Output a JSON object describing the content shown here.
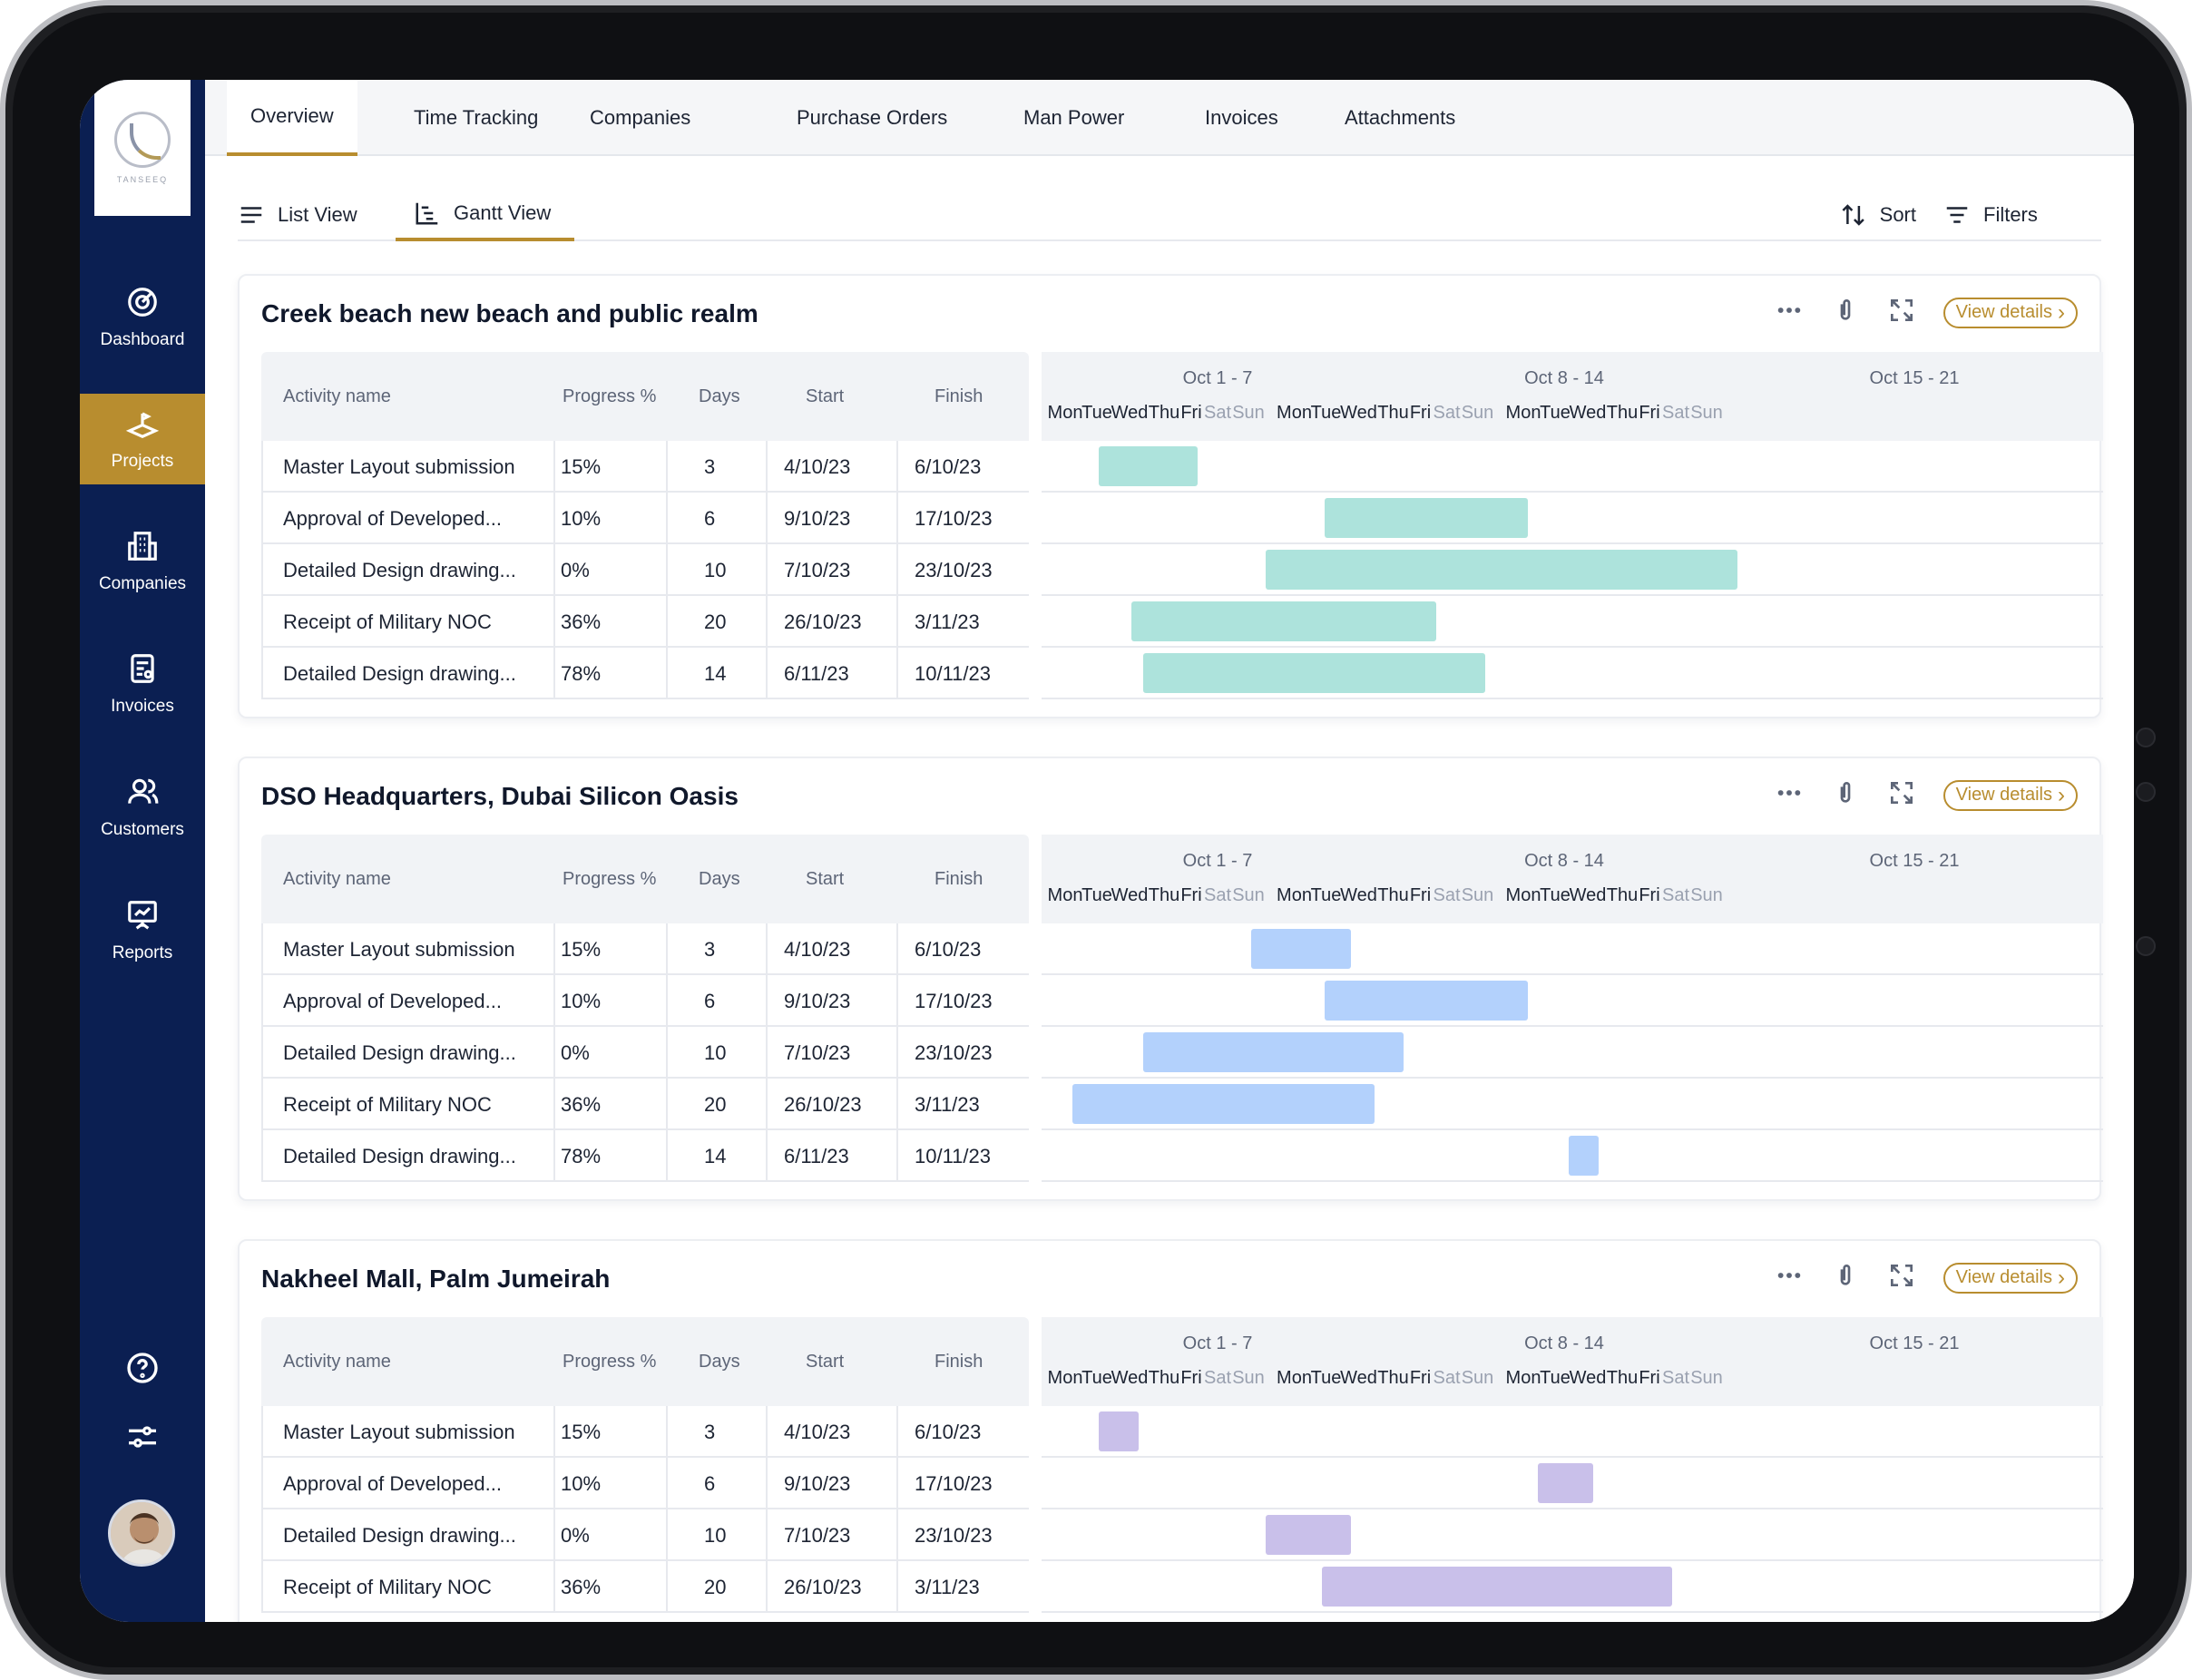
{
  "app": {
    "logo_text": "TANSEEQ",
    "nav": [
      {
        "label": "Dashboard",
        "icon": "dashboard-icon",
        "active": false
      },
      {
        "label": "Projects",
        "icon": "projects-icon",
        "active": true
      },
      {
        "label": "Companies",
        "icon": "companies-icon",
        "active": false
      },
      {
        "label": "Invoices",
        "icon": "invoices-icon",
        "active": false
      },
      {
        "label": "Customers",
        "icon": "customers-icon",
        "active": false
      },
      {
        "label": "Reports",
        "icon": "reports-icon",
        "active": false
      }
    ],
    "bottom_icons": [
      "help-icon",
      "settings-sliders-icon"
    ],
    "accent_color": "#b88d2f",
    "sidebar_color": "#0b1f52"
  },
  "tabs": [
    {
      "label": "Overview",
      "active": true
    },
    {
      "label": "Time Tracking",
      "active": false
    },
    {
      "label": "Companies",
      "active": false
    },
    {
      "label": "Purchase Orders",
      "active": false
    },
    {
      "label": "Man Power",
      "active": false
    },
    {
      "label": "Invoices",
      "active": false
    },
    {
      "label": "Attachments",
      "active": false
    }
  ],
  "toolbar": {
    "list_view": "List View",
    "gantt_view": "Gantt View",
    "sort": "Sort",
    "filters": "Filters"
  },
  "table_headers": [
    "Activity name",
    "Progress %",
    "Days",
    "Start",
    "Finish"
  ],
  "weeks": [
    "Oct 1 - 7",
    "Oct 8 - 14",
    "Oct 15 - 21"
  ],
  "days": [
    "Mon",
    "Tue",
    "Wed",
    "Thu",
    "Fri",
    "Sat",
    "Sun"
  ],
  "view_details": "View details",
  "projects": [
    {
      "title": "Creek beach new beach and public realm",
      "bar_color": "#ade3dc",
      "rows": [
        {
          "name": "Master Layout submission",
          "progress": "15%",
          "days": "3",
          "start": "4/10/23",
          "finish": "6/10/23",
          "bar": [
            1.2,
            4.2
          ]
        },
        {
          "name": "Approval of Developed...",
          "progress": "10%",
          "days": "6",
          "start": "9/10/23",
          "finish": "17/10/23",
          "bar": [
            8.1,
            14.3
          ]
        },
        {
          "name": "Detailed Design drawing...",
          "progress": "0%",
          "days": "10",
          "start": "7/10/23",
          "finish": "23/10/23",
          "bar": [
            6.3,
            20.7
          ]
        },
        {
          "name": "Receipt of Military NOC",
          "progress": "36%",
          "days": "20",
          "start": "26/10/23",
          "finish": "3/11/23",
          "bar": [
            2.2,
            11.5
          ]
        },
        {
          "name": "Detailed Design drawing...",
          "progress": "78%",
          "days": "14",
          "start": "6/11/23",
          "finish": "10/11/23",
          "bar": [
            2.55,
            13.0
          ]
        }
      ]
    },
    {
      "title": "DSO Headquarters, Dubai Silicon Oasis",
      "bar_color": "#b3d1fc",
      "rows": [
        {
          "name": "Master Layout submission",
          "progress": "15%",
          "days": "3",
          "start": "4/10/23",
          "finish": "6/10/23",
          "bar": [
            5.85,
            8.9
          ]
        },
        {
          "name": "Approval of Developed...",
          "progress": "10%",
          "days": "6",
          "start": "9/10/23",
          "finish": "17/10/23",
          "bar": [
            8.1,
            14.3
          ]
        },
        {
          "name": "Detailed Design drawing...",
          "progress": "0%",
          "days": "10",
          "start": "7/10/23",
          "finish": "23/10/23",
          "bar": [
            2.55,
            10.5
          ]
        },
        {
          "name": "Receipt of Military NOC",
          "progress": "36%",
          "days": "20",
          "start": "26/10/23",
          "finish": "3/11/23",
          "bar": [
            0.4,
            9.6
          ]
        },
        {
          "name": "Detailed Design drawing...",
          "progress": "78%",
          "days": "14",
          "start": "6/11/23",
          "finish": "10/11/23",
          "bar": [
            15.55,
            16.45
          ]
        }
      ]
    },
    {
      "title": "Nakheel Mall, Palm Jumeirah",
      "bar_color": "#c9c0ea",
      "rows": [
        {
          "name": "Master Layout submission",
          "progress": "15%",
          "days": "3",
          "start": "4/10/23",
          "finish": "6/10/23",
          "bar": [
            1.2,
            2.4
          ]
        },
        {
          "name": "Approval of Developed...",
          "progress": "10%",
          "days": "6",
          "start": "9/10/23",
          "finish": "17/10/23",
          "bar": [
            14.6,
            16.3
          ]
        },
        {
          "name": "Detailed Design drawing...",
          "progress": "0%",
          "days": "10",
          "start": "7/10/23",
          "finish": "23/10/23",
          "bar": [
            6.3,
            8.9
          ]
        },
        {
          "name": "Receipt of Military NOC",
          "progress": "36%",
          "days": "20",
          "start": "26/10/23",
          "finish": "3/11/23",
          "bar": [
            8.0,
            18.7
          ]
        }
      ]
    }
  ]
}
